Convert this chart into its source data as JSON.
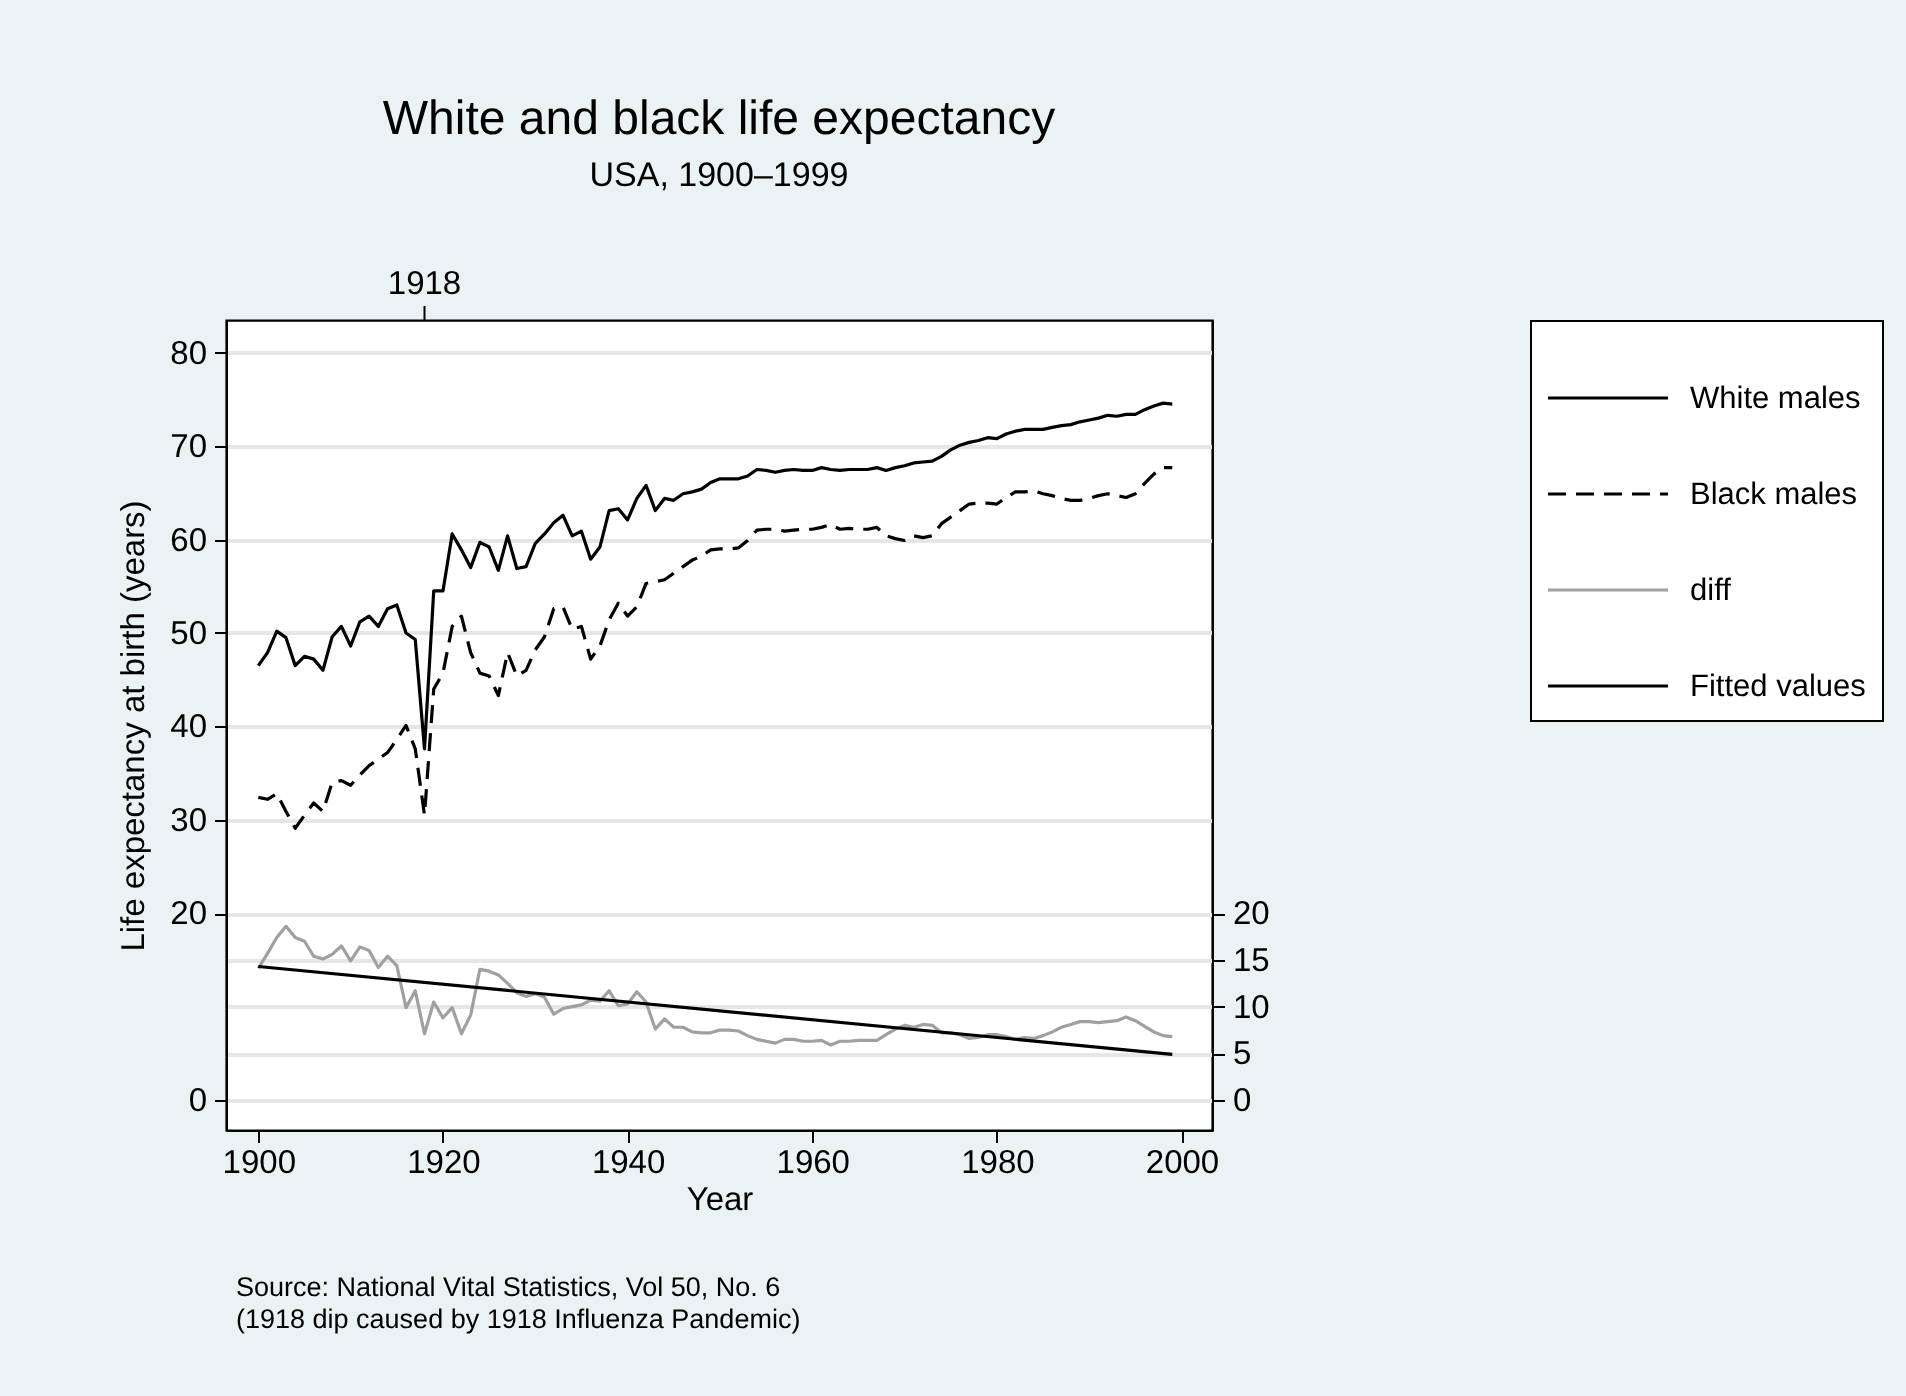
{
  "chart_data": {
    "type": "line",
    "title": "White and black life expectancy",
    "subtitle": "USA, 1900–1999",
    "xlabel": "Year",
    "ylabel": "Life expectancy at birth (years)",
    "x": [
      1900,
      1901,
      1902,
      1903,
      1904,
      1905,
      1906,
      1907,
      1908,
      1909,
      1910,
      1911,
      1912,
      1913,
      1914,
      1915,
      1916,
      1917,
      1918,
      1919,
      1920,
      1921,
      1922,
      1923,
      1924,
      1925,
      1926,
      1927,
      1928,
      1929,
      1930,
      1931,
      1932,
      1933,
      1934,
      1935,
      1936,
      1937,
      1938,
      1939,
      1940,
      1941,
      1942,
      1943,
      1944,
      1945,
      1946,
      1947,
      1948,
      1949,
      1950,
      1951,
      1952,
      1953,
      1954,
      1955,
      1956,
      1957,
      1958,
      1959,
      1960,
      1961,
      1962,
      1963,
      1964,
      1965,
      1966,
      1967,
      1968,
      1969,
      1970,
      1971,
      1972,
      1973,
      1974,
      1975,
      1976,
      1977,
      1978,
      1979,
      1980,
      1981,
      1982,
      1983,
      1984,
      1985,
      1986,
      1987,
      1988,
      1989,
      1990,
      1991,
      1992,
      1993,
      1994,
      1995,
      1996,
      1997,
      1998,
      1999
    ],
    "series": [
      {
        "name": "White males",
        "color": "#000000",
        "line_style": "solid",
        "values": [
          46.5,
          47.9,
          50.2,
          49.5,
          46.5,
          47.5,
          47.2,
          46.0,
          49.6,
          50.7,
          48.6,
          51.2,
          51.8,
          50.7,
          52.6,
          53.0,
          50.0,
          49.3,
          37.6,
          54.5,
          54.5,
          60.6,
          58.9,
          57.0,
          59.7,
          59.2,
          56.7,
          60.4,
          56.9,
          57.1,
          59.6,
          60.6,
          61.8,
          62.6,
          60.4,
          60.9,
          57.9,
          59.2,
          63.1,
          63.3,
          62.1,
          64.4,
          65.8,
          63.1,
          64.4,
          64.2,
          64.9,
          65.1,
          65.4,
          66.1,
          66.5,
          66.5,
          66.5,
          66.8,
          67.5,
          67.4,
          67.2,
          67.4,
          67.5,
          67.4,
          67.4,
          67.7,
          67.5,
          67.4,
          67.5,
          67.5,
          67.5,
          67.7,
          67.4,
          67.7,
          67.9,
          68.2,
          68.3,
          68.4,
          68.9,
          69.6,
          70.1,
          70.4,
          70.6,
          70.9,
          70.8,
          71.3,
          71.6,
          71.8,
          71.8,
          71.8,
          72.0,
          72.2,
          72.3,
          72.6,
          72.8,
          73.0,
          73.3,
          73.2,
          73.4,
          73.4,
          73.9,
          74.3,
          74.6,
          74.5
        ]
      },
      {
        "name": "Black males",
        "color": "#000000",
        "line_style": "dashed",
        "values": [
          32.4,
          32.2,
          32.8,
          30.9,
          29.1,
          30.5,
          31.8,
          30.9,
          34.0,
          34.2,
          33.7,
          34.8,
          35.8,
          36.5,
          37.2,
          38.6,
          40.1,
          37.6,
          30.5,
          44.0,
          45.7,
          50.7,
          51.8,
          47.9,
          45.7,
          45.4,
          43.3,
          47.9,
          45.4,
          46.0,
          48.2,
          49.6,
          52.6,
          52.8,
          50.4,
          50.7,
          47.2,
          48.6,
          51.4,
          53.2,
          51.8,
          52.8,
          55.3,
          55.5,
          55.7,
          56.4,
          57.1,
          57.8,
          58.2,
          58.9,
          59.0,
          59.0,
          59.1,
          59.9,
          61.0,
          61.1,
          61.1,
          60.9,
          61.0,
          61.1,
          61.1,
          61.3,
          61.6,
          61.1,
          61.2,
          61.1,
          61.1,
          61.3,
          60.4,
          60.1,
          59.9,
          60.4,
          60.2,
          60.4,
          61.7,
          62.4,
          63.1,
          63.8,
          63.9,
          63.9,
          63.8,
          64.5,
          65.1,
          65.1,
          65.2,
          64.9,
          64.7,
          64.4,
          64.2,
          64.2,
          64.4,
          64.7,
          64.9,
          64.7,
          64.5,
          64.9,
          66.0,
          67.0,
          67.7,
          67.7
        ]
      },
      {
        "name": "diff",
        "color": "#a0a0a0",
        "line_style": "solid",
        "axis": "y2",
        "values": [
          14.1,
          15.7,
          17.4,
          18.6,
          17.4,
          17.0,
          15.4,
          15.1,
          15.6,
          16.5,
          14.9,
          16.4,
          16.0,
          14.2,
          15.4,
          14.4,
          9.9,
          11.7,
          7.1,
          10.5,
          8.8,
          9.9,
          7.1,
          9.1,
          14.0,
          13.8,
          13.4,
          12.5,
          11.5,
          11.1,
          11.4,
          11.0,
          9.2,
          9.8,
          10.0,
          10.2,
          10.7,
          10.6,
          11.7,
          10.1,
          10.3,
          11.6,
          10.5,
          7.6,
          8.7,
          7.8,
          7.8,
          7.3,
          7.2,
          7.2,
          7.5,
          7.5,
          7.4,
          6.9,
          6.5,
          6.3,
          6.1,
          6.5,
          6.5,
          6.3,
          6.3,
          6.4,
          5.9,
          6.3,
          6.3,
          6.4,
          6.4,
          6.4,
          7.0,
          7.6,
          8.0,
          7.8,
          8.1,
          8.0,
          7.2,
          7.2,
          7.0,
          6.6,
          6.7,
          7.0,
          7.0,
          6.8,
          6.5,
          6.7,
          6.6,
          6.9,
          7.3,
          7.8,
          8.1,
          8.4,
          8.4,
          8.3,
          8.4,
          8.5,
          8.9,
          8.5,
          7.9,
          7.3,
          6.9,
          6.8
        ]
      },
      {
        "name": "Fitted values",
        "color": "#000000",
        "line_style": "solid",
        "axis": "y2",
        "type": "line",
        "x": [
          1900,
          1999
        ],
        "values": [
          14.3,
          4.9
        ]
      }
    ],
    "xlim": [
      1896.5,
      2003.3
    ],
    "xticks": [
      1900,
      1920,
      1940,
      1960,
      1980,
      2000
    ],
    "ref_lines": [
      {
        "axis": "x",
        "value": 1918,
        "label": "1918"
      }
    ],
    "ylim": [
      -3.2,
      83.5
    ],
    "yticks": [
      0,
      20,
      30,
      40,
      50,
      60,
      70,
      80
    ],
    "y2lim": [
      -3.2,
      83.5
    ],
    "y2ticks": [
      0,
      5,
      10,
      15,
      20
    ],
    "grid": "y",
    "legend": "right",
    "annotations": [
      "Source: National Vital Statistics, Vol 50, No. 6",
      "(1918 dip caused by 1918 Influenza Pandemic)"
    ]
  }
}
